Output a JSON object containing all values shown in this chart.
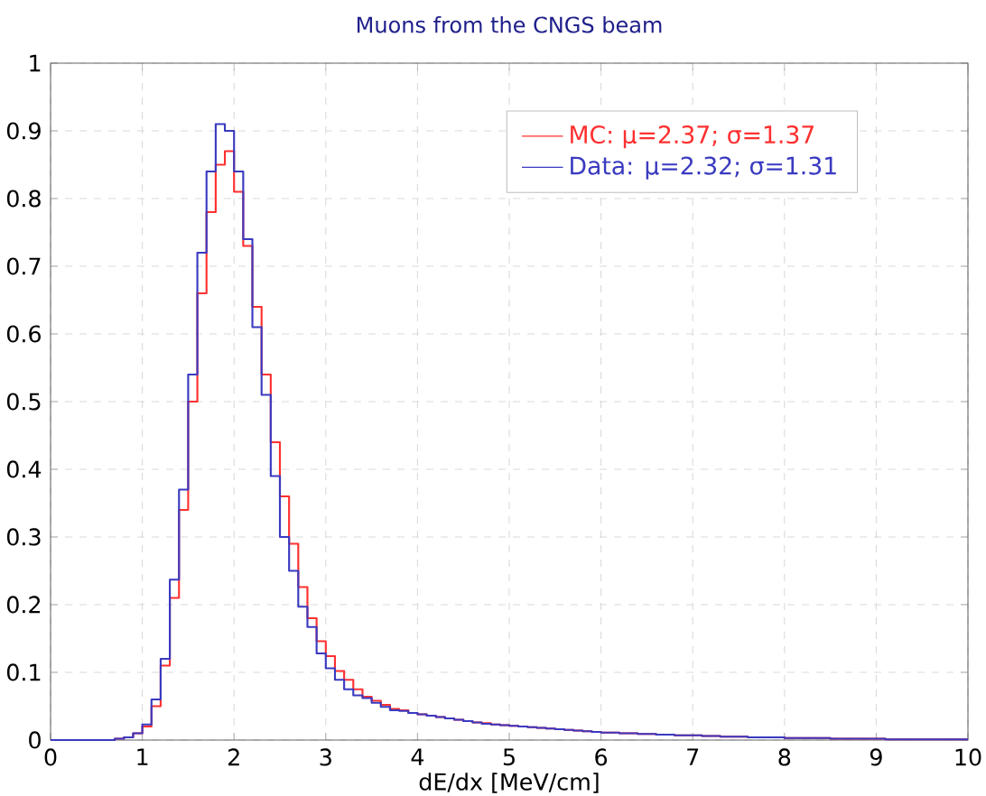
{
  "chart_data": {
    "type": "histogram",
    "title": "Muons from the CNGS beam",
    "xlabel": "dE/dx [MeV/cm]",
    "bins": [
      0,
      0.1,
      0.2,
      0.3,
      0.4,
      0.5,
      0.6,
      0.7,
      0.8,
      0.9,
      1,
      1.1,
      1.2,
      1.3,
      1.4,
      1.5,
      1.6,
      1.7,
      1.8,
      1.9,
      2,
      2.1,
      2.2,
      2.3,
      2.4,
      2.5,
      2.6,
      2.7,
      2.8,
      2.9,
      3,
      3.1,
      3.2,
      3.3,
      3.4,
      3.5,
      3.6,
      3.7,
      3.8,
      3.9,
      4,
      4.1,
      4.2,
      4.3,
      4.4,
      4.5,
      4.6,
      4.7,
      4.8,
      4.9,
      5,
      5.1,
      5.2,
      5.3,
      5.4,
      5.5,
      5.6,
      5.7,
      5.8,
      5.9,
      6,
      6.1,
      6.2,
      6.3,
      6.4,
      6.5,
      6.6,
      6.7,
      6.8,
      6.9,
      7,
      7.1,
      7.2,
      7.3,
      7.4,
      7.5,
      7.6,
      7.7,
      7.8,
      7.9,
      8,
      8.1,
      8.2,
      8.3,
      8.4,
      8.5,
      8.6,
      8.7,
      8.8,
      8.9,
      9,
      9.1,
      9.2,
      9.3,
      9.4,
      9.5,
      9.6,
      9.7,
      9.8,
      9.9,
      10
    ],
    "series": [
      {
        "name": "MC: μ=2.37; σ=1.37",
        "color": "#ff3030",
        "values": [
          0,
          0,
          0,
          0,
          0,
          0,
          0,
          0.002,
          0.004,
          0.01,
          0.02,
          0.05,
          0.11,
          0.21,
          0.34,
          0.5,
          0.66,
          0.78,
          0.85,
          0.87,
          0.81,
          0.73,
          0.64,
          0.54,
          0.44,
          0.36,
          0.29,
          0.226,
          0.18,
          0.146,
          0.124,
          0.102,
          0.089,
          0.075,
          0.064,
          0.058,
          0.052,
          0.046,
          0.044,
          0.04,
          0.038,
          0.036,
          0.034,
          0.032,
          0.03,
          0.028,
          0.026,
          0.025,
          0.023,
          0.022,
          0.021,
          0.02,
          0.019,
          0.018,
          0.017,
          0.016,
          0.015,
          0.014,
          0.013,
          0.012,
          0.011,
          0.011,
          0.01,
          0.01,
          0.009,
          0.009,
          0.008,
          0.008,
          0.007,
          0.007,
          0.007,
          0.006,
          0.006,
          0.005,
          0.005,
          0.005,
          0.004,
          0.004,
          0.004,
          0.004,
          0.003,
          0.003,
          0.003,
          0.003,
          0.003,
          0.002,
          0.002,
          0.002,
          0.002,
          0.002,
          0.002,
          0.001,
          0.001,
          0.001,
          0.001,
          0.001,
          0.001,
          0.001,
          0.001,
          0.001
        ]
      },
      {
        "name": "Data: μ=2.32; σ=1.31",
        "color": "#3a3ac0",
        "values": [
          0,
          0,
          0,
          0,
          0,
          0,
          0,
          0.002,
          0.004,
          0.01,
          0.023,
          0.06,
          0.12,
          0.237,
          0.37,
          0.54,
          0.72,
          0.84,
          0.91,
          0.9,
          0.84,
          0.74,
          0.61,
          0.51,
          0.39,
          0.3,
          0.25,
          0.197,
          0.167,
          0.128,
          0.106,
          0.089,
          0.075,
          0.066,
          0.062,
          0.055,
          0.049,
          0.044,
          0.043,
          0.04,
          0.038,
          0.036,
          0.034,
          0.032,
          0.03,
          0.028,
          0.026,
          0.024,
          0.023,
          0.022,
          0.021,
          0.02,
          0.019,
          0.018,
          0.017,
          0.016,
          0.015,
          0.014,
          0.013,
          0.012,
          0.011,
          0.011,
          0.01,
          0.01,
          0.009,
          0.009,
          0.008,
          0.008,
          0.007,
          0.007,
          0.007,
          0.006,
          0.006,
          0.005,
          0.005,
          0.005,
          0.004,
          0.004,
          0.004,
          0.004,
          0.003,
          0.003,
          0.003,
          0.003,
          0.003,
          0.002,
          0.002,
          0.002,
          0.002,
          0.002,
          0.002,
          0.001,
          0.001,
          0.001,
          0.001,
          0.001,
          0.001,
          0.001,
          0.001,
          0.001
        ]
      }
    ],
    "xlim": [
      0,
      10
    ],
    "ylim": [
      0,
      1
    ],
    "xticks": [
      0,
      1,
      2,
      3,
      4,
      5,
      6,
      7,
      8,
      9,
      10
    ],
    "yticks": [
      0,
      0.1,
      0.2,
      0.3,
      0.4,
      0.5,
      0.6,
      0.7,
      0.8,
      0.9,
      1
    ],
    "grid": true,
    "legend": "top right"
  }
}
